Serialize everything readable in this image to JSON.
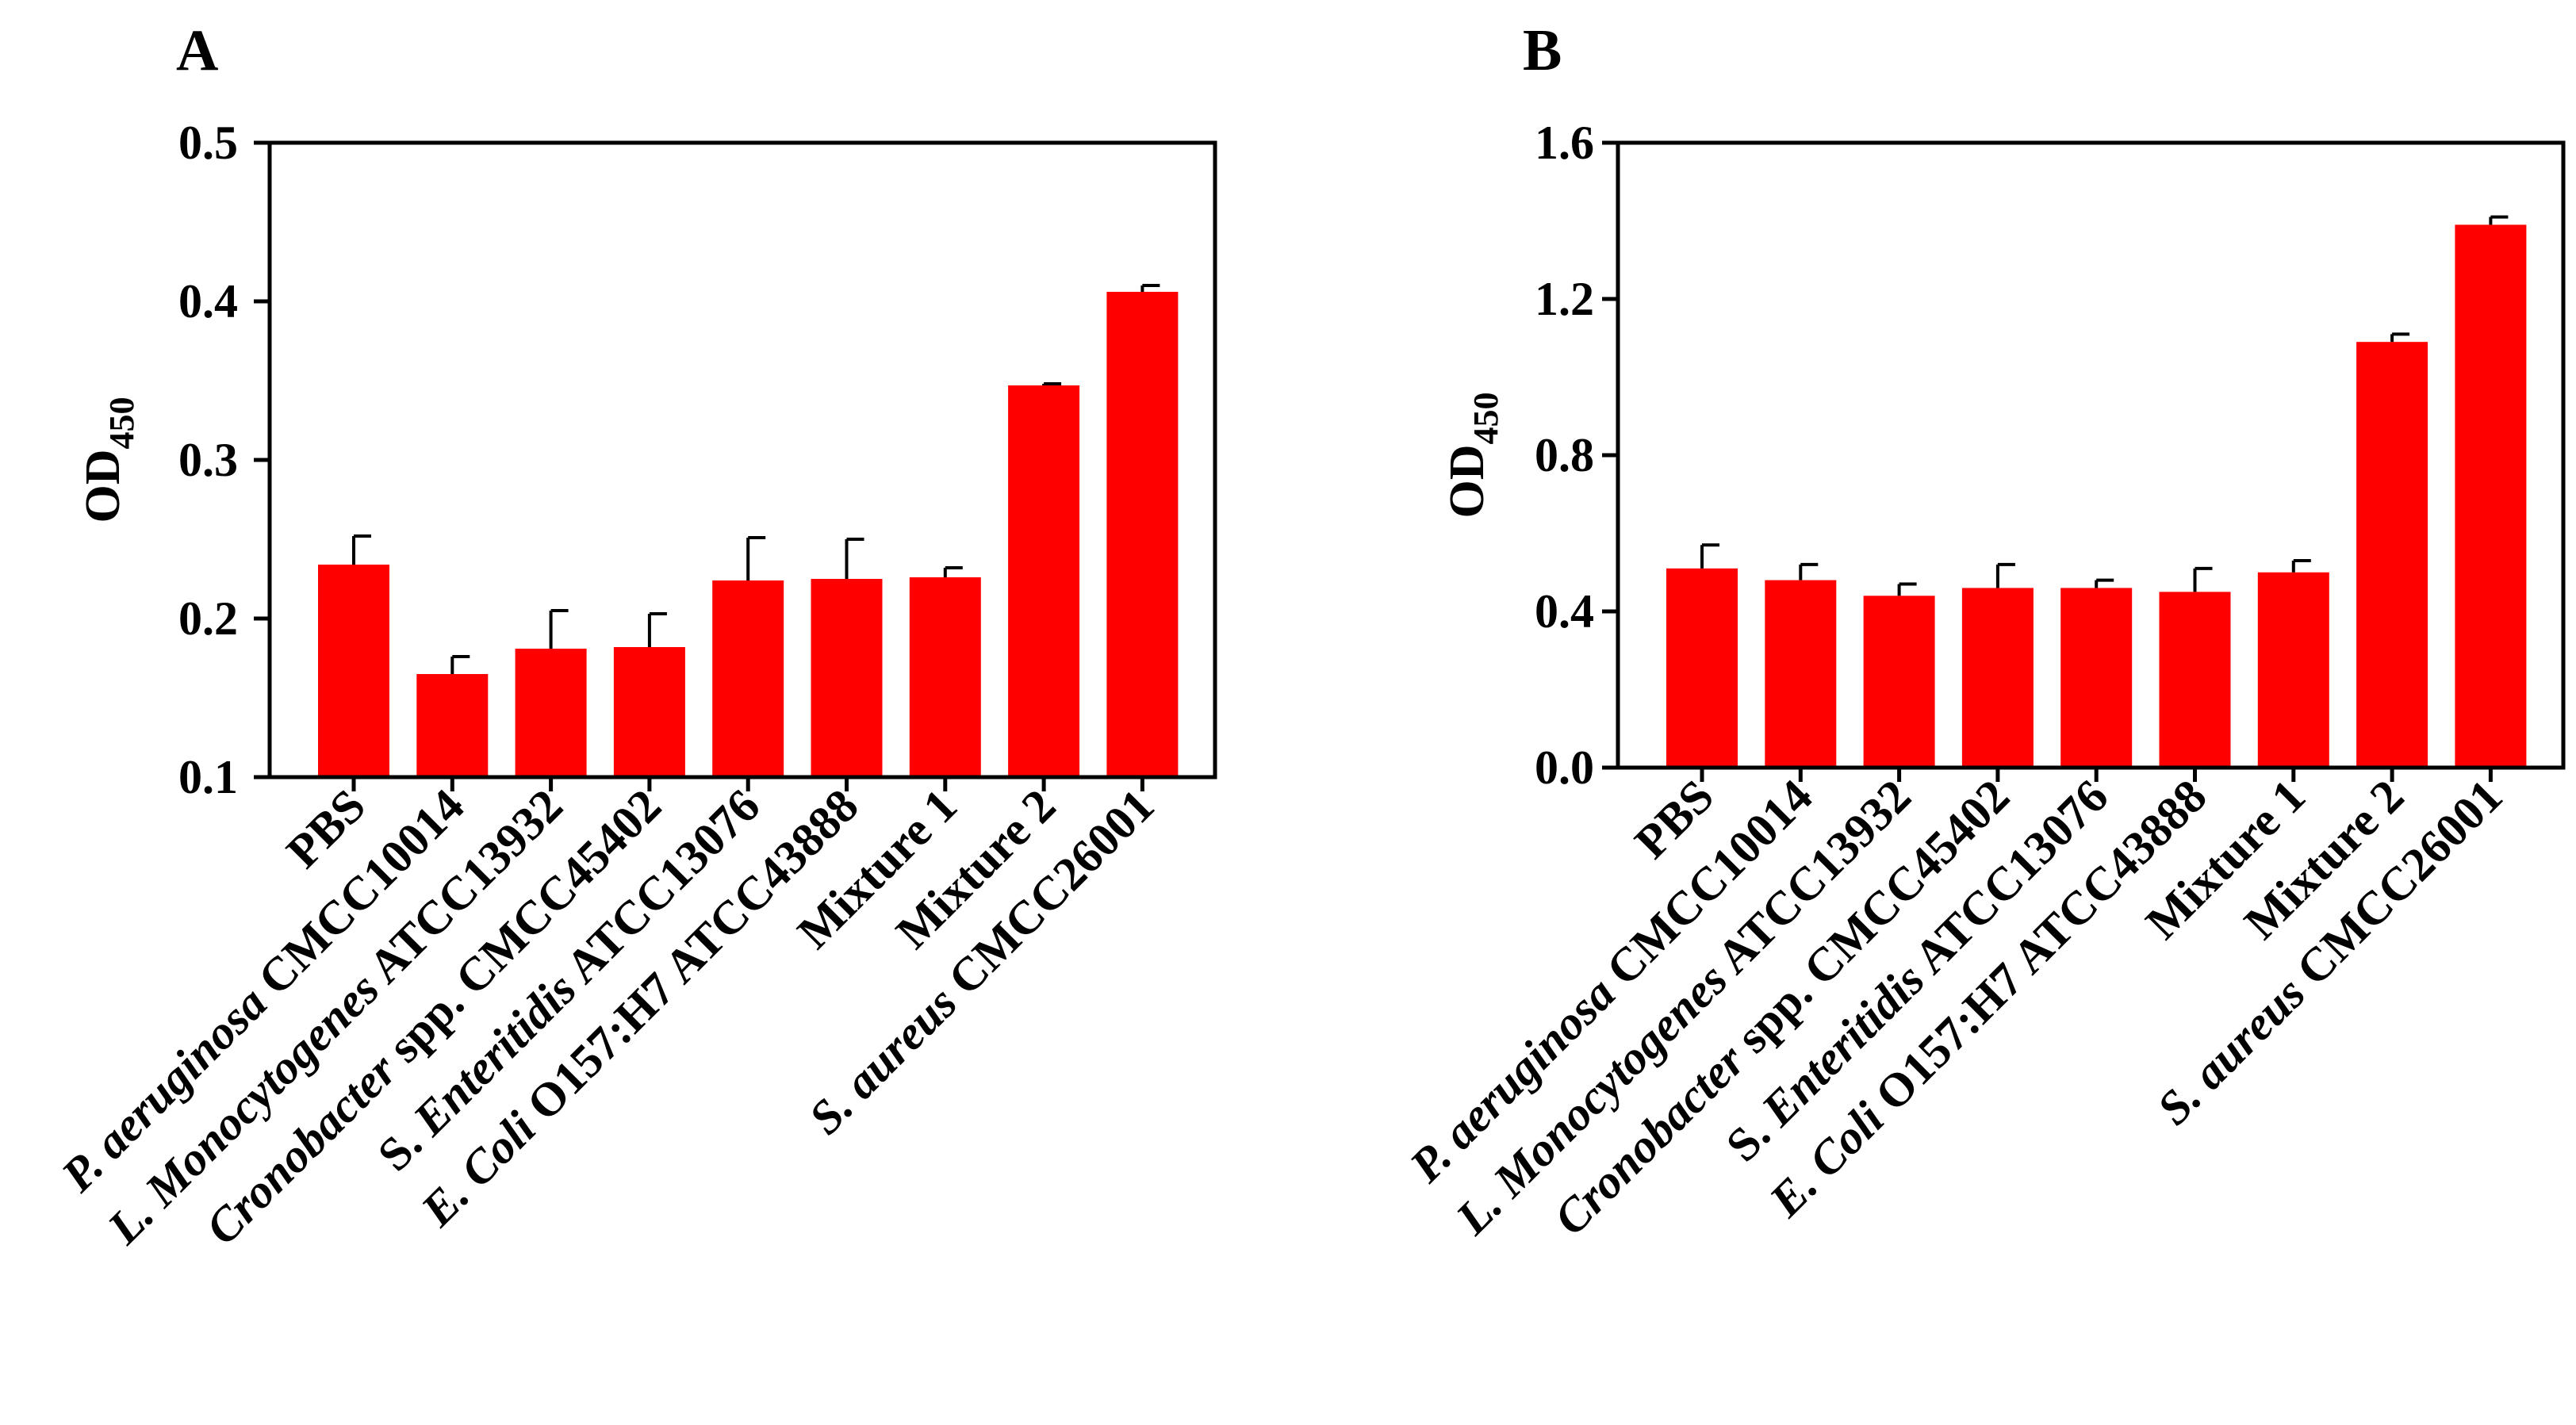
{
  "bar_color": "#ff0000",
  "axis_color": "#000000",
  "chart_data": [
    {
      "panel_label": "A",
      "type": "bar",
      "ylabel": "OD",
      "ylabel_sub": "450",
      "ylim": [
        0.1,
        0.5
      ],
      "yticks": [
        {
          "value": 0.1,
          "label": "0.1"
        },
        {
          "value": 0.2,
          "label": "0.2"
        },
        {
          "value": 0.3,
          "label": "0.3"
        },
        {
          "value": 0.4,
          "label": "0.4"
        },
        {
          "value": 0.5,
          "label": "0.5"
        }
      ],
      "categories": [
        {
          "italic": "",
          "plain": "PBS"
        },
        {
          "italic": "P. aeruginosa",
          "plain": " CMCC10014"
        },
        {
          "italic": "L. Monocytogenes",
          "plain": " ATCC13932"
        },
        {
          "italic": "Cronobacter",
          "plain": " spp. CMCC45402"
        },
        {
          "italic": "",
          "plain": "S. ",
          "italic2": "Enteritidis",
          "plain2": " ATCC13076"
        },
        {
          "italic": "E. Coli",
          "plain": " O157:H7 ATCC43888"
        },
        {
          "italic": "",
          "plain": "Mixture 1"
        },
        {
          "italic": "",
          "plain": "Mixture 2"
        },
        {
          "italic": "S. aureus",
          "plain": " CMCC26001"
        }
      ],
      "values": [
        0.234,
        0.165,
        0.181,
        0.182,
        0.224,
        0.225,
        0.226,
        0.347,
        0.406
      ],
      "errors": [
        0.018,
        0.011,
        0.024,
        0.021,
        0.027,
        0.025,
        0.006,
        0.001,
        0.004
      ]
    },
    {
      "panel_label": "B",
      "type": "bar",
      "ylabel": "OD",
      "ylabel_sub": "450",
      "ylim": [
        0.0,
        1.6
      ],
      "yticks": [
        {
          "value": 0.0,
          "label": "0.0"
        },
        {
          "value": 0.4,
          "label": "0.4"
        },
        {
          "value": 0.8,
          "label": "0.8"
        },
        {
          "value": 1.2,
          "label": "1.2"
        },
        {
          "value": 1.6,
          "label": "1.6"
        }
      ],
      "categories": [
        {
          "italic": "",
          "plain": "PBS"
        },
        {
          "italic": "P. aeruginosa",
          "plain": " CMCC10014"
        },
        {
          "italic": "L. Monocytogenes",
          "plain": " ATCC13932"
        },
        {
          "italic": "Cronobacter",
          "plain": " spp. CMCC45402"
        },
        {
          "italic": "",
          "plain": "S. ",
          "italic2": "Enteritidis",
          "plain2": " ATCC13076"
        },
        {
          "italic": "E. Coli",
          "plain": " O157:H7 ATCC43888"
        },
        {
          "italic": "",
          "plain": "Mixture 1"
        },
        {
          "italic": "",
          "plain": "Mixture 2"
        },
        {
          "italic": "S. aureus",
          "plain": " CMCC26001"
        }
      ],
      "values": [
        0.51,
        0.48,
        0.44,
        0.46,
        0.46,
        0.45,
        0.5,
        1.09,
        1.39
      ],
      "errors": [
        0.06,
        0.04,
        0.03,
        0.06,
        0.02,
        0.06,
        0.03,
        0.02,
        0.02
      ]
    }
  ]
}
